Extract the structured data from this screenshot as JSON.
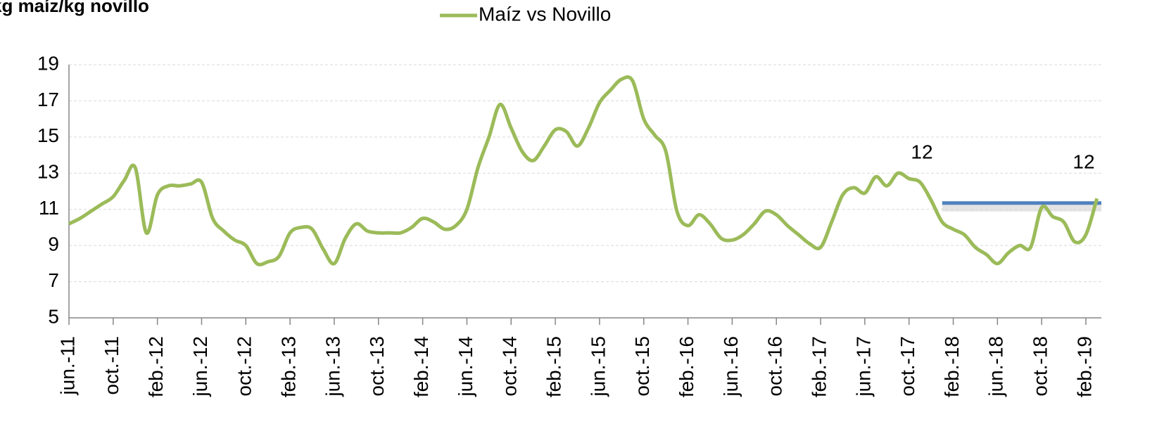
{
  "chart_data": {
    "type": "line",
    "title": "kg maíz/kg novillo",
    "categories": [
      "jun.-11",
      null,
      null,
      null,
      "oct.-11",
      null,
      null,
      null,
      "feb.-12",
      null,
      null,
      null,
      "jun.-12",
      null,
      null,
      null,
      "oct.-12",
      null,
      null,
      null,
      "feb.-13",
      null,
      null,
      null,
      "jun.-13",
      null,
      null,
      null,
      "oct.-13",
      null,
      null,
      null,
      "feb.-14",
      null,
      null,
      null,
      "jun.-14",
      null,
      null,
      null,
      "oct.-14",
      null,
      null,
      null,
      "feb.-15",
      null,
      null,
      null,
      "jun.-15",
      null,
      null,
      null,
      "oct.-15",
      null,
      null,
      null,
      "feb.-16",
      null,
      null,
      null,
      "jun.-16",
      null,
      null,
      null,
      "oct.-16",
      null,
      null,
      null,
      "feb.-17",
      null,
      null,
      null,
      "jun.-17",
      null,
      null,
      null,
      "oct.-17",
      null,
      null,
      null,
      "feb.-18",
      null,
      null,
      null,
      "jun.-18",
      null,
      null,
      null,
      "oct.-18",
      null,
      null,
      null,
      "feb.-19",
      null
    ],
    "series": [
      {
        "name": "Maíz vs Novillo",
        "color": "#9bbb59",
        "values": [
          10.2,
          10.5,
          10.9,
          11.3,
          11.7,
          12.6,
          13.3,
          9.7,
          11.8,
          12.3,
          12.3,
          12.4,
          12.5,
          10.5,
          9.8,
          9.3,
          9.0,
          8.0,
          8.1,
          8.4,
          9.7,
          10.0,
          9.9,
          8.8,
          8.0,
          9.4,
          10.2,
          9.8,
          9.7,
          9.7,
          9.7,
          10.0,
          10.5,
          10.3,
          9.9,
          10.1,
          11.0,
          13.3,
          15.0,
          16.8,
          15.5,
          14.2,
          13.7,
          14.5,
          15.4,
          15.3,
          14.5,
          15.5,
          16.9,
          17.6,
          18.2,
          18.1,
          16.0,
          15.1,
          14.2,
          10.9,
          10.1,
          10.7,
          10.2,
          9.4,
          9.3,
          9.6,
          10.2,
          10.9,
          10.7,
          10.1,
          9.6,
          9.1,
          8.9,
          10.3,
          11.8,
          12.2,
          11.9,
          12.8,
          12.3,
          13.0,
          12.7,
          12.5,
          11.5,
          10.3,
          9.9,
          9.6,
          8.9,
          8.5,
          8.0,
          8.6,
          9.0,
          8.9,
          11.1,
          10.6,
          10.3,
          9.2,
          9.6,
          11.6
        ]
      }
    ],
    "reference_line": {
      "value": 11.35,
      "x_start": 79,
      "color": "#4f81bd"
    },
    "annotations": [
      {
        "text": "12"
      },
      {
        "text": "12"
      }
    ],
    "ylim": [
      5,
      19
    ],
    "yticks": [
      5,
      7,
      9,
      11,
      13,
      15,
      17,
      19
    ],
    "grid": true,
    "legend": "top"
  }
}
